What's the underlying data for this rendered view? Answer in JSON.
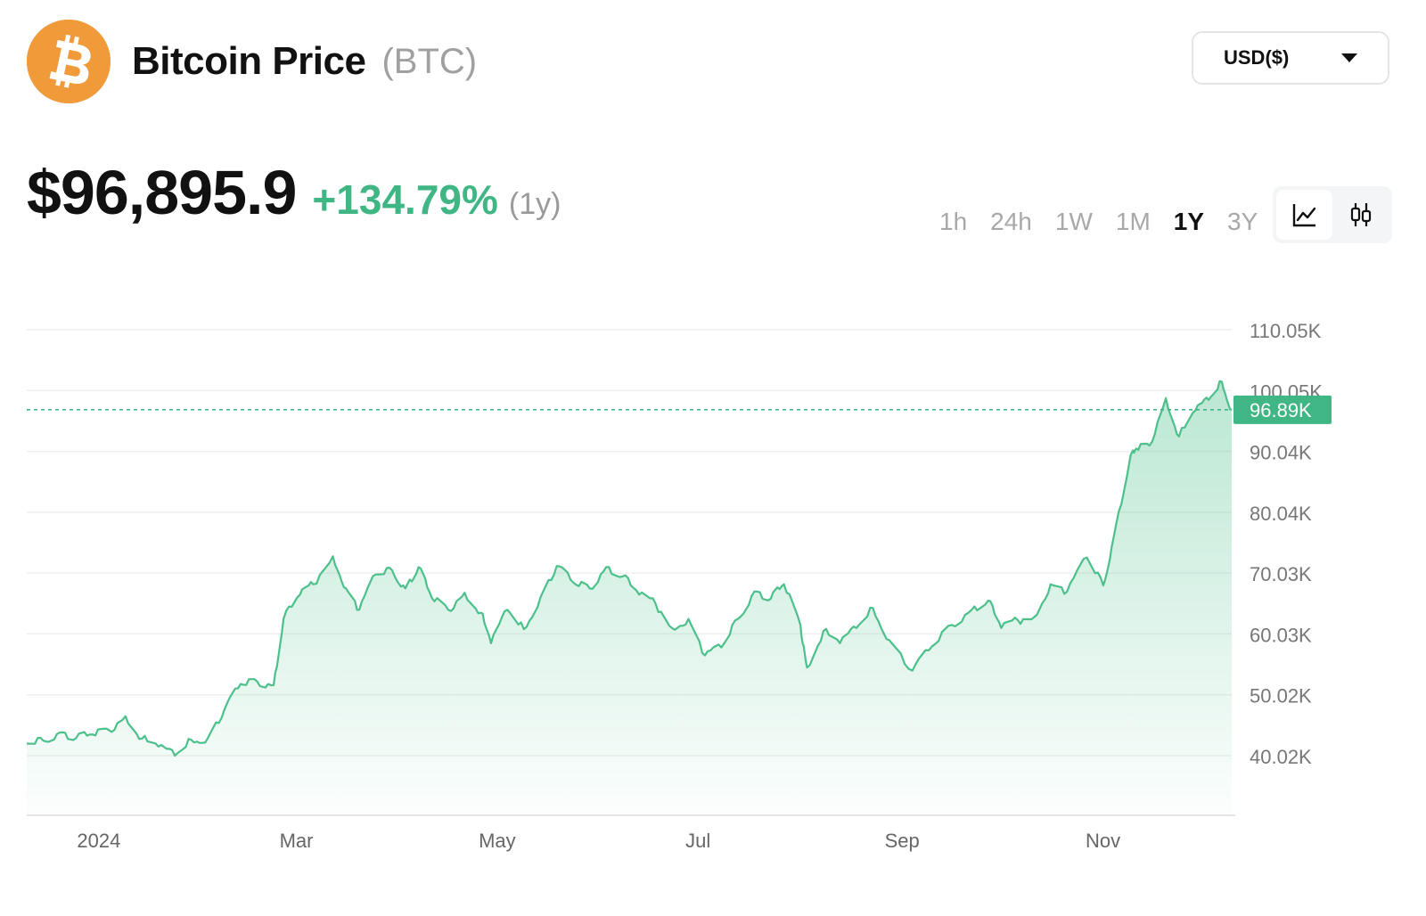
{
  "header": {
    "title": "Bitcoin Price",
    "ticker": "(BTC)",
    "currency": "USD($)"
  },
  "price": {
    "value": "$96,895.9",
    "change": "+134.79%",
    "period": "(1y)"
  },
  "ranges": [
    {
      "label": "1h",
      "active": false
    },
    {
      "label": "24h",
      "active": false
    },
    {
      "label": "1W",
      "active": false
    },
    {
      "label": "1M",
      "active": false
    },
    {
      "label": "1Y",
      "active": true
    },
    {
      "label": "3Y",
      "active": false
    }
  ],
  "chart_types": [
    {
      "icon": "line-chart-icon",
      "active": true
    },
    {
      "icon": "candlestick-chart-icon",
      "active": false
    }
  ],
  "colors": {
    "accent": "#3fb683",
    "line": "#4cc08b",
    "logo": "#f09a3a"
  },
  "chart_data": {
    "type": "area",
    "y_ticks": [
      40020,
      50020,
      60030,
      70030,
      80040,
      90040,
      100050,
      110050
    ],
    "y_tick_labels": [
      "40.02K",
      "50.02K",
      "60.03K",
      "70.03K",
      "80.04K",
      "90.04K",
      "100.05K",
      "110.05K"
    ],
    "x_tick_labels": [
      "2024",
      "Mar",
      "May",
      "Jul",
      "Sep",
      "Nov"
    ],
    "x_tick_dates": [
      "2024-01-01",
      "2024-03-01",
      "2024-05-01",
      "2024-07-01",
      "2024-09-01",
      "2024-11-01"
    ],
    "x_range": [
      "2023-12-12",
      "2024-12-12"
    ],
    "current_value": 96890,
    "current_label": "96.89K",
    "grid": true,
    "points": [
      [
        "2023-12-12",
        42000
      ],
      [
        "2023-12-17",
        42500
      ],
      [
        "2023-12-22",
        43800
      ],
      [
        "2023-12-27",
        42900
      ],
      [
        "2024-01-01",
        43500
      ],
      [
        "2024-01-06",
        44200
      ],
      [
        "2024-01-11",
        46500
      ],
      [
        "2024-01-16",
        42800
      ],
      [
        "2024-01-21",
        41500
      ],
      [
        "2024-01-26",
        40000
      ],
      [
        "2024-01-31",
        42600
      ],
      [
        "2024-02-05",
        42900
      ],
      [
        "2024-02-10",
        47500
      ],
      [
        "2024-02-15",
        51800
      ],
      [
        "2024-02-20",
        52200
      ],
      [
        "2024-02-25",
        51600
      ],
      [
        "2024-02-28",
        62500
      ],
      [
        "2024-03-04",
        66500
      ],
      [
        "2024-03-08",
        68200
      ],
      [
        "2024-03-14",
        72800
      ],
      [
        "2024-03-18",
        67500
      ],
      [
        "2024-03-22",
        64000
      ],
      [
        "2024-03-27",
        69800
      ],
      [
        "2024-04-01",
        70500
      ],
      [
        "2024-04-05",
        67500
      ],
      [
        "2024-04-09",
        71000
      ],
      [
        "2024-04-13",
        66000
      ],
      [
        "2024-04-18",
        64000
      ],
      [
        "2024-04-23",
        66800
      ],
      [
        "2024-04-28",
        63500
      ],
      [
        "2024-05-01",
        58500
      ],
      [
        "2024-05-06",
        64000
      ],
      [
        "2024-05-11",
        60800
      ],
      [
        "2024-05-16",
        66000
      ],
      [
        "2024-05-21",
        71200
      ],
      [
        "2024-05-26",
        68500
      ],
      [
        "2024-05-31",
        67500
      ],
      [
        "2024-06-05",
        71000
      ],
      [
        "2024-06-10",
        69500
      ],
      [
        "2024-06-15",
        66500
      ],
      [
        "2024-06-20",
        65000
      ],
      [
        "2024-06-25",
        61000
      ],
      [
        "2024-06-30",
        62500
      ],
      [
        "2024-07-05",
        56500
      ],
      [
        "2024-07-10",
        57800
      ],
      [
        "2024-07-15",
        62500
      ],
      [
        "2024-07-20",
        67000
      ],
      [
        "2024-07-25",
        65800
      ],
      [
        "2024-07-29",
        68200
      ],
      [
        "2024-08-03",
        61500
      ],
      [
        "2024-08-05",
        54500
      ],
      [
        "2024-08-10",
        60500
      ],
      [
        "2024-08-15",
        58500
      ],
      [
        "2024-08-20",
        61000
      ],
      [
        "2024-08-25",
        64300
      ],
      [
        "2024-08-30",
        59000
      ],
      [
        "2024-09-06",
        54000
      ],
      [
        "2024-09-12",
        58000
      ],
      [
        "2024-09-18",
        61500
      ],
      [
        "2024-09-24",
        64000
      ],
      [
        "2024-09-29",
        65500
      ],
      [
        "2024-10-03",
        61000
      ],
      [
        "2024-10-08",
        62300
      ],
      [
        "2024-10-13",
        62800
      ],
      [
        "2024-10-18",
        68200
      ],
      [
        "2024-10-23",
        67000
      ],
      [
        "2024-10-29",
        72600
      ],
      [
        "2024-11-03",
        68000
      ],
      [
        "2024-11-06",
        75500
      ],
      [
        "2024-11-11",
        88500
      ],
      [
        "2024-11-13",
        90500
      ],
      [
        "2024-11-17",
        91000
      ],
      [
        "2024-11-22",
        98800
      ],
      [
        "2024-11-26",
        92500
      ],
      [
        "2024-12-01",
        96800
      ],
      [
        "2024-12-05",
        98500
      ],
      [
        "2024-12-09",
        101500
      ],
      [
        "2024-12-12",
        96890
      ]
    ]
  }
}
